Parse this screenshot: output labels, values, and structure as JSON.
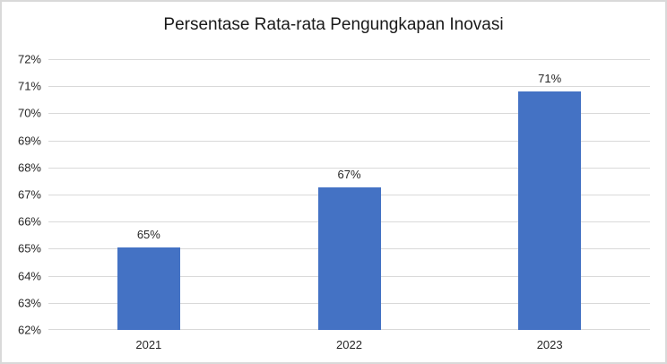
{
  "chart_data": {
    "type": "bar",
    "title": "Persentase Rata-rata Pengungkapan Inovasi",
    "categories": [
      "2021",
      "2022",
      "2023"
    ],
    "values": [
      65.05,
      67.25,
      70.8
    ],
    "data_labels": [
      "65%",
      "67%",
      "71%"
    ],
    "ylim": [
      62,
      72
    ],
    "y_ticks_top_to_bottom": [
      "72%",
      "71%",
      "70%",
      "69%",
      "68%",
      "67%",
      "66%",
      "65%",
      "64%",
      "63%",
      "62%"
    ],
    "xlabel": "",
    "ylabel": "",
    "grid": true,
    "legend": "none",
    "colors": {
      "bar": "#4472c4",
      "gridline": "#d9d9d9",
      "axis_line": "#d9d9d9",
      "tick_text": "#262626",
      "title_text": "#1a1a1a",
      "frame_border": "#d9d9d9",
      "background": "#ffffff"
    }
  }
}
